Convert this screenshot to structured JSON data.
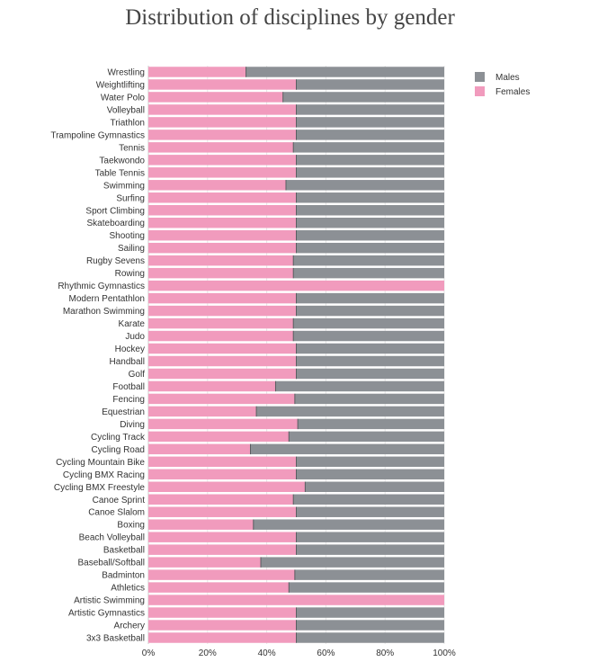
{
  "chart_data": {
    "type": "bar",
    "orientation": "horizontal",
    "stacked": "percent",
    "title": "Distribution of disciplines by gender",
    "xlim": [
      0,
      100
    ],
    "x_ticks": [
      "0%",
      "20%",
      "40%",
      "60%",
      "80%",
      "100%"
    ],
    "grid": true,
    "legend_position": "top-right",
    "categories": [
      "Wrestling",
      "Weightlifting",
      "Water Polo",
      "Volleyball",
      "Triathlon",
      "Trampoline Gymnastics",
      "Tennis",
      "Taekwondo",
      "Table Tennis",
      "Swimming",
      "Surfing",
      "Sport Climbing",
      "Skateboarding",
      "Shooting",
      "Sailing",
      "Rugby Sevens",
      "Rowing",
      "Rhythmic Gymnastics",
      "Modern Pentathlon",
      "Marathon Swimming",
      "Karate",
      "Judo",
      "Hockey",
      "Handball",
      "Golf",
      "Football",
      "Fencing",
      "Equestrian",
      "Diving",
      "Cycling Track",
      "Cycling Road",
      "Cycling Mountain Bike",
      "Cycling BMX Racing",
      "Cycling BMX Freestyle",
      "Canoe Sprint",
      "Canoe Slalom",
      "Boxing",
      "Beach Volleyball",
      "Basketball",
      "Baseball/Softball",
      "Badminton",
      "Athletics",
      "Artistic Swimming",
      "Artistic Gymnastics",
      "Archery",
      "3x3 Basketball"
    ],
    "series": [
      {
        "name": "Females",
        "color": "#f19bbd",
        "values": [
          33,
          50,
          45.5,
          50,
          50,
          50,
          49,
          50,
          50,
          46.5,
          50,
          50,
          50,
          50,
          50,
          49,
          49,
          100,
          50,
          50,
          49,
          49,
          50,
          50,
          50,
          43,
          49.5,
          36.5,
          50.5,
          47.5,
          34.5,
          50,
          50,
          53,
          49,
          50,
          35.5,
          50,
          50,
          38,
          49.5,
          47.5,
          100,
          50,
          50,
          50
        ]
      },
      {
        "name": "Males",
        "color": "#8c9095",
        "values": [
          67,
          50,
          54.5,
          50,
          50,
          50,
          51,
          50,
          50,
          53.5,
          50,
          50,
          50,
          50,
          50,
          51,
          51,
          0,
          50,
          50,
          51,
          51,
          50,
          50,
          50,
          57,
          50.5,
          63.5,
          49.5,
          52.5,
          65.5,
          50,
          50,
          47,
          51,
          50,
          64.5,
          50,
          50,
          62,
          50.5,
          52.5,
          0,
          50,
          50,
          50
        ]
      }
    ]
  },
  "legend": {
    "items": [
      {
        "label": "Males",
        "color": "#8c9095"
      },
      {
        "label": "Females",
        "color": "#f19bbd"
      }
    ]
  }
}
